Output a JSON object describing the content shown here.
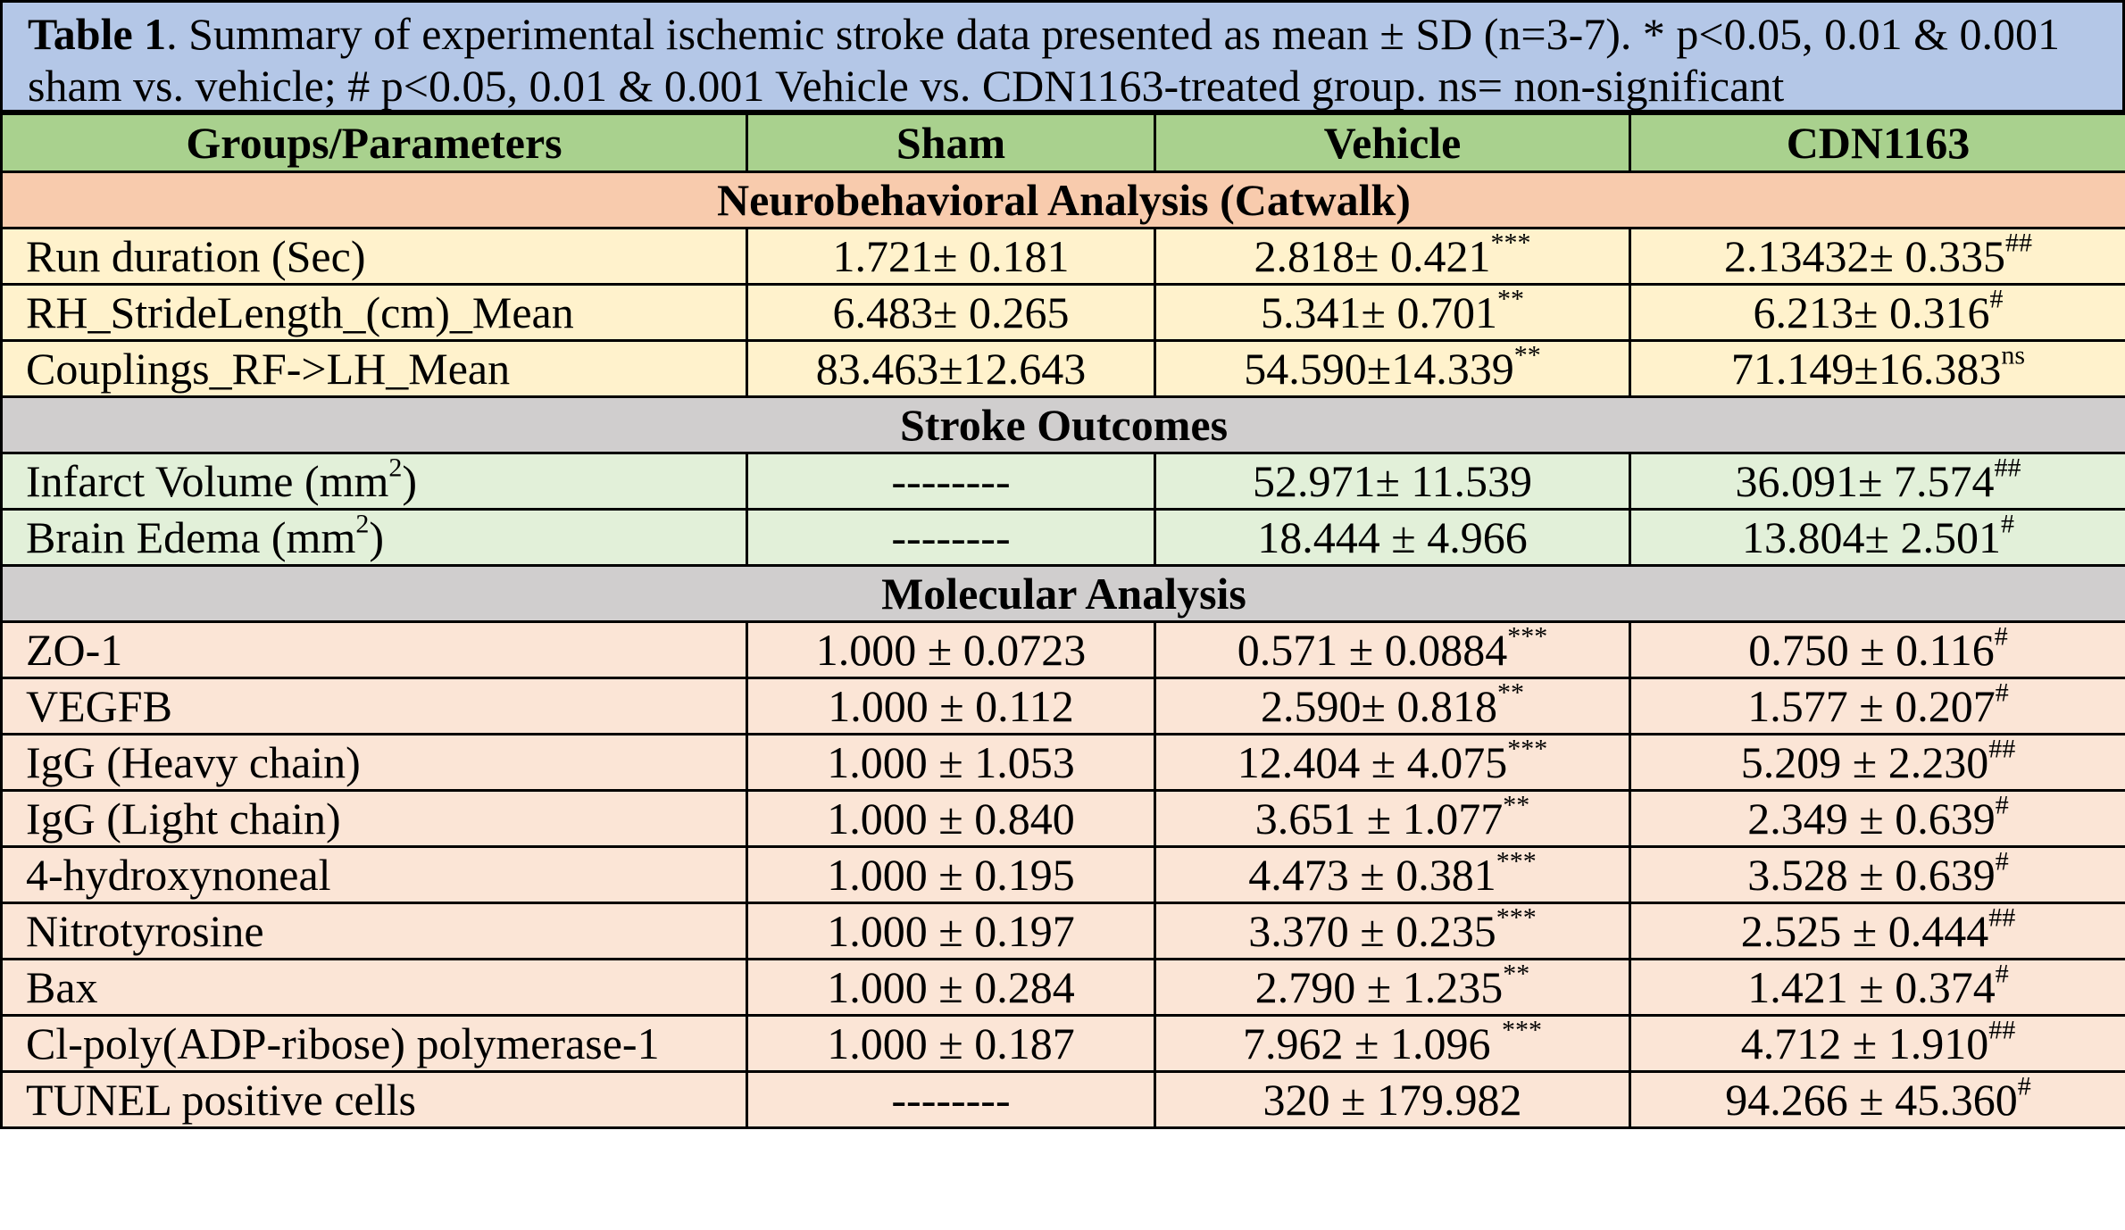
{
  "caption": {
    "label": "Table 1",
    "text": ". Summary of experimental ischemic stroke data presented as mean ± SD (n=3-7). * p<0.05, 0.01 & 0.001 sham vs. vehicle; # p<0.05, 0.01 & 0.001 Vehicle vs. CDN1163-treated group. ns= non-significant"
  },
  "header": [
    "Groups/Parameters",
    "Sham",
    "Vehicle",
    "CDN1163"
  ],
  "sections": [
    {
      "title": "Neurobehavioral Analysis (Catwalk)",
      "rows": [
        {
          "name": "Run duration (Sec)",
          "sham": "1.721± 0.181",
          "vehicle": "2.818± 0.421",
          "vehicle_sup": "***",
          "cdn": "2.13432± 0.335",
          "cdn_sup": "##"
        },
        {
          "name": "RH_StrideLength_(cm)_Mean",
          "sham": "6.483± 0.265",
          "vehicle": "5.341± 0.701",
          "vehicle_sup": "**",
          "cdn": "6.213± 0.316",
          "cdn_sup": "#"
        },
        {
          "name": "Couplings_RF->LH_Mean",
          "sham": "83.463±12.643",
          "vehicle": "54.590±14.339",
          "vehicle_sup": "**",
          "cdn": "71.149±16.383",
          "cdn_sup": "ns"
        }
      ]
    },
    {
      "title": "Stroke Outcomes",
      "rows": [
        {
          "name": "Infarct Volume (mm",
          "name_sup": "2",
          "name_tail": ")",
          "sham": "--------",
          "vehicle": "52.971± 11.539",
          "vehicle_sup": "",
          "cdn": "36.091± 7.574",
          "cdn_sup": "##"
        },
        {
          "name": "Brain Edema (mm",
          "name_sup": "2",
          "name_tail": ")",
          "sham": "--------",
          "vehicle": "18.444 ± 4.966",
          "vehicle_sup": "",
          "cdn": "13.804± 2.501",
          "cdn_sup": "#"
        }
      ]
    },
    {
      "title": "Molecular Analysis",
      "rows": [
        {
          "name": "ZO-1",
          "sham": "1.000 ± 0.0723",
          "vehicle": "0.571 ± 0.0884",
          "vehicle_sup": "***",
          "cdn": "0.750 ± 0.116",
          "cdn_sup": "#"
        },
        {
          "name": "VEGFB",
          "sham": "1.000 ± 0.112",
          "vehicle": "2.590± 0.818",
          "vehicle_sup": "**",
          "cdn": "1.577 ± 0.207",
          "cdn_sup": "#"
        },
        {
          "name": "IgG (Heavy chain)",
          "sham": "1.000 ± 1.053",
          "vehicle": "12.404 ± 4.075",
          "vehicle_sup": "***",
          "cdn": "5.209 ± 2.230",
          "cdn_sup": "##"
        },
        {
          "name": "IgG (Light chain)",
          "sham": "1.000 ± 0.840",
          "vehicle": "3.651 ± 1.077",
          "vehicle_sup": "**",
          "cdn": "2.349 ± 0.639",
          "cdn_sup": "#"
        },
        {
          "name": "4-hydroxynoneal",
          "sham": "1.000 ± 0.195",
          "vehicle": "4.473 ± 0.381",
          "vehicle_sup": "***",
          "cdn": "3.528 ± 0.639",
          "cdn_sup": "#"
        },
        {
          "name": "Nitrotyrosine",
          "sham": "1.000 ± 0.197",
          "vehicle": "3.370 ± 0.235",
          "vehicle_sup": "***",
          "cdn": "2.525 ± 0.444",
          "cdn_sup": "##"
        },
        {
          "name": "Bax",
          "sham": "1.000 ± 0.284",
          "vehicle": "2.790 ± 1.235",
          "vehicle_sup": "**",
          "cdn": "1.421 ± 0.374",
          "cdn_sup": "#"
        },
        {
          "name": "Cl-poly(ADP-ribose) polymerase-1",
          "sham": "1.000 ± 0.187",
          "vehicle": "7.962 ± 1.096 ",
          "vehicle_sup": "***",
          "cdn": "4.712 ± 1.910",
          "cdn_sup": "##"
        },
        {
          "name": "TUNEL positive cells",
          "sham": "--------",
          "vehicle": "320 ± 179.982",
          "vehicle_sup": "",
          "cdn": "94.266 ± 45.360",
          "cdn_sup": "#"
        }
      ]
    }
  ]
}
